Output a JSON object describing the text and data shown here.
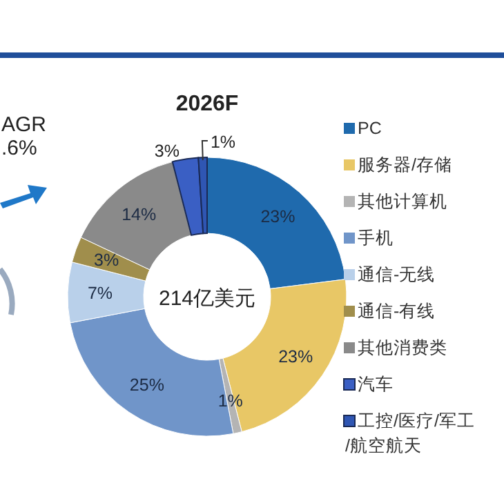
{
  "chart_data": {
    "type": "donut",
    "title": "2026F",
    "categories": [
      "PC",
      "服务器/存储",
      "其他计算机",
      "手机",
      "通信-无线",
      "通信-有线",
      "其他消费类",
      "汽车",
      "工控/医疗/军工/航空航天"
    ],
    "values": [
      23,
      23,
      1,
      25,
      7,
      3,
      14,
      3,
      1
    ],
    "colors": [
      "#1f6aad",
      "#e8c766",
      "#b4b4b4",
      "#7095c9",
      "#b9d0ea",
      "#a08e4c",
      "#8a8a8a",
      "#3a5fc4",
      "#2f56b3"
    ],
    "value_labels": [
      "23%",
      "23%",
      "1%",
      "25%",
      "7%",
      "3%",
      "14%",
      "3%",
      "1%"
    ],
    "legend": "right",
    "annotations": [
      "214亿美元",
      "AGR",
      ".6%"
    ]
  }
}
